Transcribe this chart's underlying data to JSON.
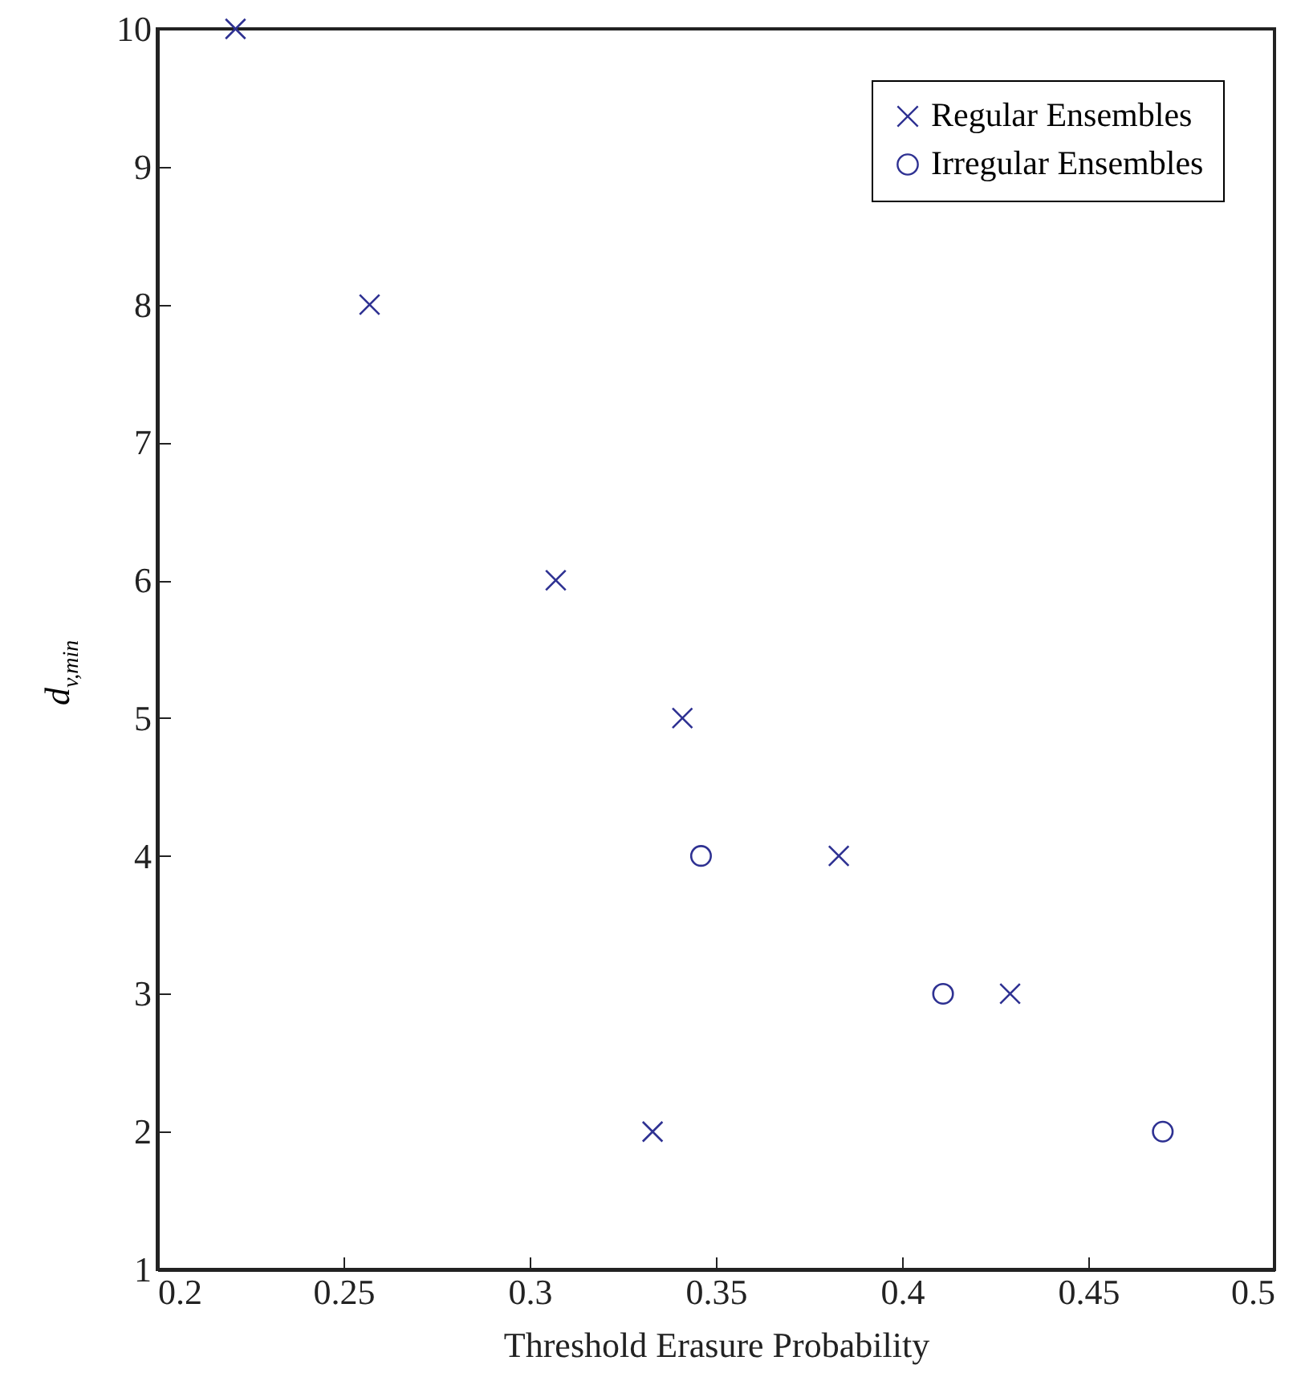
{
  "chart_data": {
    "type": "scatter",
    "xlabel": "Threshold Erasure Probability",
    "ylabel": "d$_{v,min}$",
    "xlim": [
      0.2,
      0.5
    ],
    "xticks": [
      0.2,
      0.25,
      0.3,
      0.35,
      0.4,
      0.45,
      0.5
    ],
    "ylim": [
      1,
      10
    ],
    "yticks": [
      1,
      2,
      3,
      4,
      5,
      6,
      7,
      8,
      9,
      10
    ],
    "grid": false,
    "legend": "top right",
    "series": [
      {
        "name": "Regular Ensembles",
        "color": "#2e3192",
        "marker": "cross",
        "x": [
          0.221,
          0.257,
          0.307,
          0.341,
          0.383,
          0.429,
          0.333
        ],
        "values": [
          10,
          8,
          6,
          5,
          4,
          3,
          2
        ]
      },
      {
        "name": "Irregular Ensembles",
        "color": "#2e3192",
        "marker": "circle",
        "x": [
          0.346,
          0.411,
          0.47
        ],
        "values": [
          4,
          3,
          2
        ]
      }
    ]
  }
}
